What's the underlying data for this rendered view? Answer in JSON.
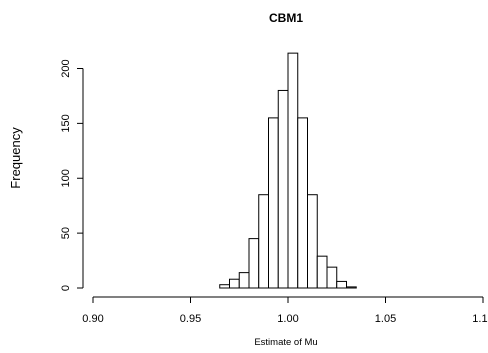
{
  "chart_data": {
    "type": "bar",
    "title": "CBM1",
    "xlabel": "Estimate of Mu",
    "ylabel": "Frequency",
    "xlim": [
      0.9,
      1.1
    ],
    "ylim": [
      0,
      215
    ],
    "x_ticks": [
      0.9,
      0.95,
      1.0,
      1.05,
      1.1
    ],
    "x_tick_labels": [
      "0.90",
      "0.95",
      "1.00",
      "1.05",
      "1.10"
    ],
    "y_ticks": [
      0,
      50,
      100,
      150,
      200
    ],
    "y_tick_labels": [
      "0",
      "50",
      "100",
      "150",
      "200"
    ],
    "bin_width": 0.005,
    "bins": [
      {
        "x0": 0.965,
        "x1": 0.97,
        "count": 3
      },
      {
        "x0": 0.97,
        "x1": 0.975,
        "count": 8
      },
      {
        "x0": 0.975,
        "x1": 0.98,
        "count": 14
      },
      {
        "x0": 0.98,
        "x1": 0.985,
        "count": 45
      },
      {
        "x0": 0.985,
        "x1": 0.99,
        "count": 85
      },
      {
        "x0": 0.99,
        "x1": 0.995,
        "count": 155
      },
      {
        "x0": 0.995,
        "x1": 1.0,
        "count": 180
      },
      {
        "x0": 1.0,
        "x1": 1.005,
        "count": 214
      },
      {
        "x0": 1.005,
        "x1": 1.01,
        "count": 155
      },
      {
        "x0": 1.01,
        "x1": 1.015,
        "count": 85
      },
      {
        "x0": 1.015,
        "x1": 1.02,
        "count": 29
      },
      {
        "x0": 1.02,
        "x1": 1.025,
        "count": 19
      },
      {
        "x0": 1.025,
        "x1": 1.03,
        "count": 6
      },
      {
        "x0": 1.03,
        "x1": 1.035,
        "count": 1
      }
    ],
    "colors": {
      "bar_fill": "#ffffff",
      "bar_stroke": "#000000",
      "axis": "#000000"
    },
    "grid": false,
    "legend": "none"
  }
}
